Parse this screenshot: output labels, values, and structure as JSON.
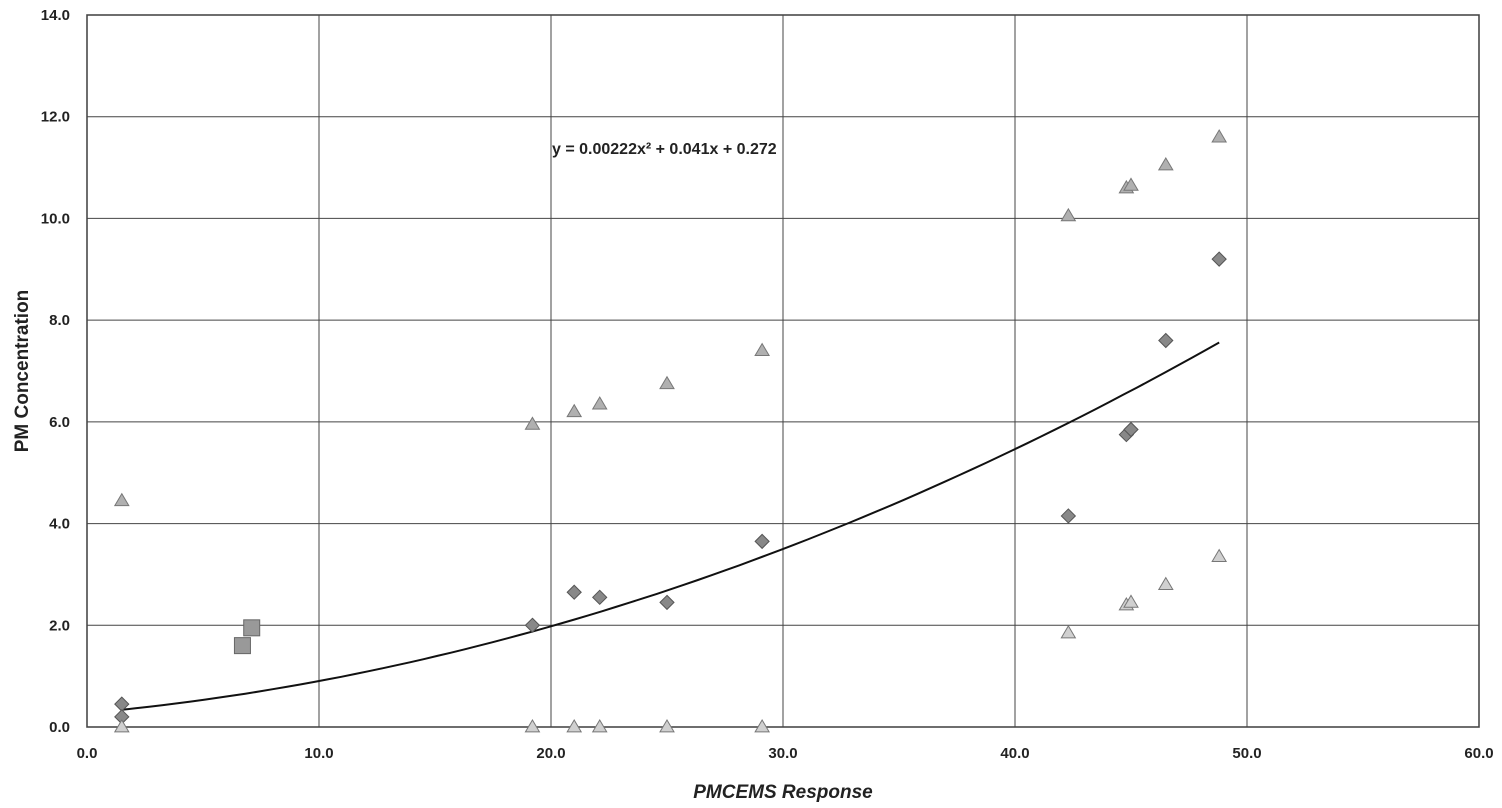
{
  "chart_data": {
    "type": "scatter",
    "title": "",
    "xlabel": "PMCEMS Response",
    "ylabel": "PM Concentration",
    "xlim": [
      0,
      60
    ],
    "ylim": [
      0,
      14
    ],
    "x_ticks": [
      0,
      10,
      20,
      30,
      40,
      50,
      60
    ],
    "y_ticks": [
      0,
      2,
      4,
      6,
      8,
      10,
      12,
      14
    ],
    "x_tick_labels": [
      "0.0",
      "10.0",
      "20.0",
      "30.0",
      "40.0",
      "50.0",
      "60.0"
    ],
    "y_tick_labels": [
      "0.0",
      "2.0",
      "4.0",
      "6.0",
      "8.0",
      "10.0",
      "12.0",
      "14.0"
    ],
    "grid": true,
    "legend": "none",
    "annotation": "y = 0.00222x² + 0.041x + 0.272",
    "trendline": {
      "type": "polynomial",
      "coefficients": [
        0.00222,
        0.041,
        0.272
      ],
      "x_range": [
        1.5,
        48.8
      ],
      "color": "#111111"
    },
    "series": [
      {
        "marker": "diamond",
        "color": "#888888",
        "points": [
          {
            "x": 1.5,
            "y": 0.45
          },
          {
            "x": 1.5,
            "y": 0.2
          },
          {
            "x": 19.2,
            "y": 2.0
          },
          {
            "x": 21.0,
            "y": 2.65
          },
          {
            "x": 22.1,
            "y": 2.55
          },
          {
            "x": 25.0,
            "y": 2.45
          },
          {
            "x": 29.1,
            "y": 3.65
          },
          {
            "x": 42.3,
            "y": 4.15
          },
          {
            "x": 44.8,
            "y": 5.75
          },
          {
            "x": 45.0,
            "y": 5.85
          },
          {
            "x": 46.5,
            "y": 7.6
          },
          {
            "x": 48.8,
            "y": 9.2
          }
        ]
      },
      {
        "marker": "square",
        "color": "#999999",
        "points": [
          {
            "x": 6.7,
            "y": 1.6
          },
          {
            "x": 7.1,
            "y": 1.95
          }
        ]
      },
      {
        "marker": "triangle",
        "color": "#b0b0b0",
        "points": [
          {
            "x": 1.5,
            "y": 4.45
          },
          {
            "x": 19.2,
            "y": 5.95
          },
          {
            "x": 21.0,
            "y": 6.2
          },
          {
            "x": 22.1,
            "y": 6.35
          },
          {
            "x": 25.0,
            "y": 6.75
          },
          {
            "x": 29.1,
            "y": 7.4
          },
          {
            "x": 42.3,
            "y": 10.05
          },
          {
            "x": 44.8,
            "y": 10.6
          },
          {
            "x": 45.0,
            "y": 10.65
          },
          {
            "x": 46.5,
            "y": 11.05
          },
          {
            "x": 48.8,
            "y": 11.6
          }
        ]
      },
      {
        "marker": "triangle",
        "color": "#d0d0d0",
        "points": [
          {
            "x": 1.5,
            "y": 0.0
          },
          {
            "x": 19.2,
            "y": 0.0
          },
          {
            "x": 21.0,
            "y": 0.0
          },
          {
            "x": 22.1,
            "y": 0.0
          },
          {
            "x": 25.0,
            "y": 0.0
          },
          {
            "x": 29.1,
            "y": 0.0
          },
          {
            "x": 42.3,
            "y": 1.85
          },
          {
            "x": 44.8,
            "y": 2.4
          },
          {
            "x": 45.0,
            "y": 2.45
          },
          {
            "x": 46.5,
            "y": 2.8
          },
          {
            "x": 48.8,
            "y": 3.35
          }
        ]
      }
    ]
  }
}
